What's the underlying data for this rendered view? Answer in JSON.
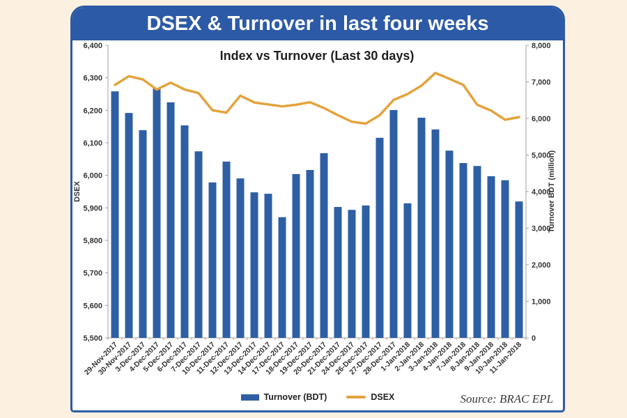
{
  "banner": {
    "title": "DSEX & Turnover in last four weeks"
  },
  "source_label": "Source: BRAC EPL",
  "colors": {
    "background": "#fcf0e1",
    "banner_blue": "#2c5aa6",
    "bar_blue": "#2e5fa4",
    "line_orange": "#e3a33c",
    "axis_gray": "#a0a0a0",
    "text_dark": "#262626"
  },
  "chart_data": {
    "type": "bar",
    "subtype": "bar+line dual axis",
    "title": "Index vs Turnover (Last 30 days)",
    "grid": false,
    "legend_position": "bottom",
    "categories": [
      "29-Nov-2017",
      "30-Nov-2017",
      "3-Dec-2017",
      "4-Dec-2017",
      "5-Dec-2017",
      "6-Dec-2017",
      "7-Dec-2017",
      "10-Dec-2017",
      "11-Dec-2017",
      "12-Dec-2017",
      "13-Dec-2017",
      "14-Dec-2017",
      "17-Dec-2017",
      "18-Dec-2017",
      "19-Dec-2017",
      "20-Dec-2017",
      "21-Dec-2017",
      "24-Dec-2017",
      "26-Dec-2017",
      "27-Dec-2017",
      "28-Dec-2017",
      "1-Jan-2018",
      "2-Jan-2018",
      "3-Jan-2018",
      "4-Jan-2018",
      "7-Jan-2018",
      "8-Jan-2018",
      "9-Jan-2018",
      "10-Jan-2018",
      "11-Jan-2018"
    ],
    "series": [
      {
        "name": "Turnover (BDT)",
        "type": "bar",
        "axis": "right",
        "color": "#2e5fa4",
        "values": [
          6740,
          6150,
          5680,
          6820,
          6440,
          5810,
          5100,
          4250,
          4820,
          4360,
          3980,
          3940,
          3300,
          4480,
          4590,
          5050,
          3580,
          3500,
          3620,
          5470,
          6230,
          3680,
          6020,
          5700,
          5120,
          4780,
          4700,
          4420,
          4310,
          3730
        ]
      },
      {
        "name": "DSEX",
        "type": "line",
        "axis": "left",
        "color": "#e3a33c",
        "values": [
          6278,
          6305,
          6295,
          6264,
          6285,
          6264,
          6253,
          6200,
          6193,
          6245,
          6224,
          6218,
          6212,
          6217,
          6225,
          6207,
          6185,
          6165,
          6159,
          6185,
          6232,
          6250,
          6276,
          6315,
          6297,
          6278,
          6217,
          6199,
          6171,
          6179
        ]
      }
    ],
    "left_axis": {
      "title": "DSEX",
      "min": 5500,
      "max": 6400,
      "step": 100
    },
    "right_axis": {
      "title": "Turnover BDT (million)",
      "min": 0,
      "max": 8000,
      "step": 1000
    }
  }
}
